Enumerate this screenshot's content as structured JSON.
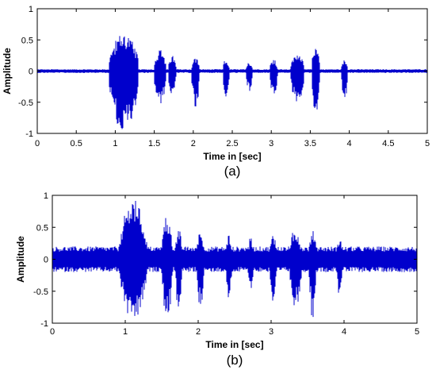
{
  "chart_data": [
    {
      "type": "line",
      "caption": "(a)",
      "xlabel": "Time in [sec]",
      "ylabel": "Amplitude",
      "xlim": [
        0,
        5
      ],
      "ylim": [
        -1,
        1
      ],
      "xticks": [
        "0",
        "0.5",
        "1",
        "1.5",
        "2",
        "2.5",
        "3",
        "3.5",
        "4",
        "4.5",
        "5"
      ],
      "yticks": [
        "-1",
        "-0.5",
        "0",
        "0.5",
        "1"
      ],
      "grid": false,
      "line_color": "#0000cc",
      "baseline_noise": 0.03,
      "bursts": [
        {
          "t_start": 0.92,
          "t_end": 1.3,
          "amp_max": 0.62,
          "amp_min": -0.98
        },
        {
          "t_start": 1.5,
          "t_end": 1.65,
          "amp_max": 0.35,
          "amp_min": -0.58
        },
        {
          "t_start": 1.68,
          "t_end": 1.78,
          "amp_max": 0.25,
          "amp_min": -0.4
        },
        {
          "t_start": 1.98,
          "t_end": 2.08,
          "amp_max": 0.22,
          "amp_min": -0.62
        },
        {
          "t_start": 2.38,
          "t_end": 2.46,
          "amp_max": 0.2,
          "amp_min": -0.45
        },
        {
          "t_start": 2.68,
          "t_end": 2.76,
          "amp_max": 0.15,
          "amp_min": -0.35
        },
        {
          "t_start": 2.98,
          "t_end": 3.08,
          "amp_max": 0.2,
          "amp_min": -0.45
        },
        {
          "t_start": 3.25,
          "t_end": 3.42,
          "amp_max": 0.3,
          "amp_min": -0.55
        },
        {
          "t_start": 3.52,
          "t_end": 3.62,
          "amp_max": 0.45,
          "amp_min": -0.68
        },
        {
          "t_start": 3.9,
          "t_end": 3.98,
          "amp_max": 0.2,
          "amp_min": -0.5
        }
      ]
    },
    {
      "type": "line",
      "caption": "(b)",
      "xlabel": "Time in [sec]",
      "ylabel": "Amplitude",
      "xlim": [
        0,
        5
      ],
      "ylim": [
        -1,
        1
      ],
      "xticks": [
        "0",
        "1",
        "2",
        "3",
        "4",
        "5"
      ],
      "yticks": [
        "-1",
        "-0.5",
        "0",
        "0.5",
        "1"
      ],
      "grid": false,
      "line_color": "#0000cc",
      "baseline_noise": 0.2,
      "bursts": [
        {
          "t_start": 0.92,
          "t_end": 1.3,
          "amp_max": 0.95,
          "amp_min": -1.0
        },
        {
          "t_start": 1.5,
          "t_end": 1.65,
          "amp_max": 0.7,
          "amp_min": -0.95
        },
        {
          "t_start": 1.68,
          "t_end": 1.78,
          "amp_max": 0.5,
          "amp_min": -0.8
        },
        {
          "t_start": 1.98,
          "t_end": 2.08,
          "amp_max": 0.45,
          "amp_min": -0.8
        },
        {
          "t_start": 2.38,
          "t_end": 2.46,
          "amp_max": 0.4,
          "amp_min": -0.7
        },
        {
          "t_start": 2.68,
          "t_end": 2.76,
          "amp_max": 0.35,
          "amp_min": -0.55
        },
        {
          "t_start": 2.98,
          "t_end": 3.08,
          "amp_max": 0.4,
          "amp_min": -0.7
        },
        {
          "t_start": 3.25,
          "t_end": 3.42,
          "amp_max": 0.5,
          "amp_min": -0.75
        },
        {
          "t_start": 3.52,
          "t_end": 3.62,
          "amp_max": 0.5,
          "amp_min": -0.95
        },
        {
          "t_start": 3.9,
          "t_end": 3.98,
          "amp_max": 0.35,
          "amp_min": -0.6
        }
      ]
    }
  ]
}
